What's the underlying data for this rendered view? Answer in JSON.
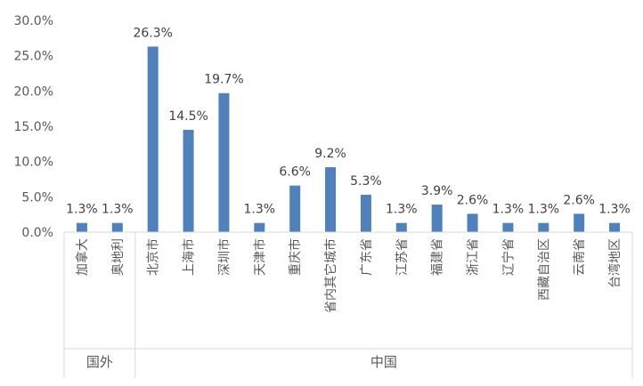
{
  "chart_data": {
    "type": "bar",
    "categories": [
      "加拿大",
      "奥地利",
      "北京市",
      "上海市",
      "深圳市",
      "天津市",
      "重庆市",
      "省内其它城市",
      "广东省",
      "江苏省",
      "福建省",
      "浙江省",
      "辽宁省",
      "西藏自治区",
      "云南省",
      "台湾地区"
    ],
    "values": [
      1.3,
      1.3,
      26.3,
      14.5,
      19.7,
      1.3,
      6.6,
      9.2,
      5.3,
      1.3,
      3.9,
      2.6,
      1.3,
      1.3,
      2.6,
      1.3
    ],
    "value_labels": [
      "1.3%",
      "1.3%",
      "26.3%",
      "14.5%",
      "19.7%",
      "1.3%",
      "6.6%",
      "9.2%",
      "5.3%",
      "1.3%",
      "3.9%",
      "2.6%",
      "1.3%",
      "1.3%",
      "2.6%",
      "1.3%"
    ],
    "groups": [
      {
        "label": "国外",
        "count": 2
      },
      {
        "label": "中国",
        "count": 14
      }
    ],
    "yticks": [
      "0.0%",
      "5.0%",
      "10.0%",
      "15.0%",
      "20.0%",
      "25.0%",
      "30.0%"
    ],
    "ylim": [
      0,
      30
    ],
    "color": "#4f81bd",
    "grid": false,
    "title": "",
    "xlabel": "",
    "ylabel": ""
  }
}
